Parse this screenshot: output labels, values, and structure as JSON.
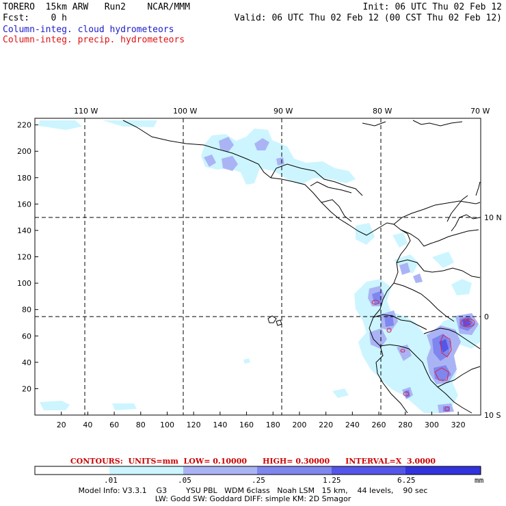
{
  "header": {
    "line1_left": "TORERO  15km ARW   Run2    NCAR/MMM",
    "line1_right": "Init: 06 UTC Thu 02 Feb 12",
    "line2_left": "Fcst:    0 h",
    "line2_right": "Valid: 06 UTC Thu 02 Feb 12 (00 CST Thu 02 Feb 12)",
    "field1": "Column-integ. cloud hydrometeors",
    "field2": "Column-integ. precip. hydrometeors"
  },
  "map": {
    "lon_labels": [
      "110 W",
      "100 W",
      "90 W",
      "80 W",
      "70 W"
    ],
    "lat_labels": [
      "10 N",
      "0",
      "10 S"
    ],
    "y_ticks": [
      "20",
      "40",
      "60",
      "80",
      "100",
      "120",
      "140",
      "160",
      "180",
      "200",
      "220"
    ],
    "x_ticks": [
      "20",
      "40",
      "60",
      "80",
      "100",
      "120",
      "140",
      "160",
      "180",
      "200",
      "220",
      "240",
      "260",
      "280",
      "300",
      "320"
    ]
  },
  "contours_line": "CONTOURS:  UNITS=mm  LOW= 0.10000      HIGH= 0.30000      INTERVAL=X  3.0000",
  "colorbar": {
    "labels": [
      ".01",
      ".05",
      ".25",
      "1.25",
      "6.25"
    ],
    "units": "mm",
    "colors": [
      "#ffffff",
      "#ccf5ff",
      "#aab4f5",
      "#7f86ee",
      "#5555e8",
      "#3333dd"
    ]
  },
  "model_info": {
    "line1": "Model Info: V3.3.1    G3        YSU PBL   WDM 6class   Noah LSM   15 km,    44 levels,    90 sec",
    "line2": "LW: Godd SW: Goddard DIFF: simple KM: 2D Smagor"
  }
}
